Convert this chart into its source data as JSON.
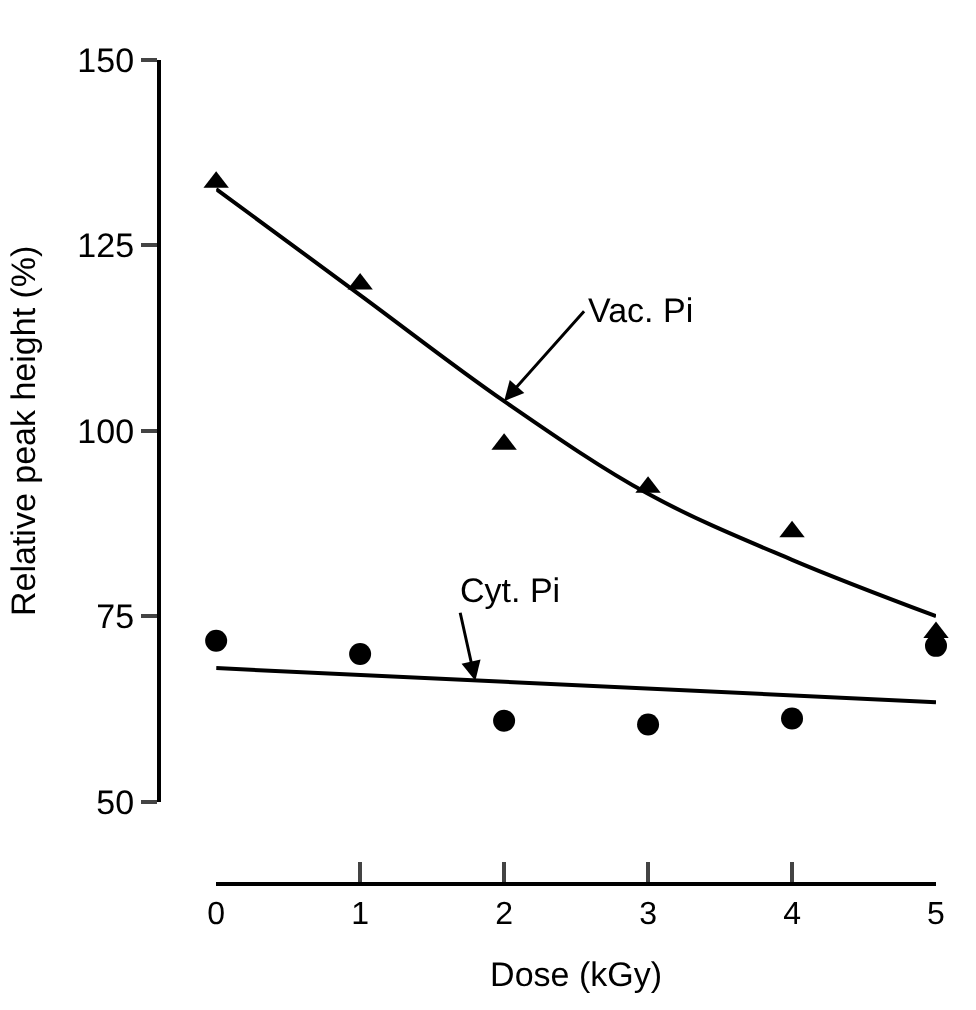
{
  "chart_data": {
    "type": "scatter",
    "xlabel": "Dose (kGy)",
    "ylabel": "Relative peak height (%)",
    "x": [
      0,
      1,
      2,
      3,
      4,
      5
    ],
    "xlim": [
      0,
      5
    ],
    "xticks": [
      0,
      1,
      2,
      3,
      4,
      5
    ],
    "ylim": [
      50,
      150
    ],
    "yticks": [
      50,
      75,
      100,
      125,
      150
    ],
    "series": [
      {
        "marker": "triangle",
        "color": "#000000",
        "values": [
          133.5,
          119.8,
          98.2,
          92.4,
          86.4,
          72.8
        ]
      },
      {
        "marker": "circle",
        "color": "#000000",
        "values": [
          71.7,
          69.9,
          60.9,
          60.4,
          61.2,
          71
        ]
      },
      {
        "type": "line",
        "marker": "none",
        "line_style": "solid",
        "color": "#000000",
        "values": [
          132.6,
          118.3,
          104,
          91.5,
          82.6,
          75
        ]
      },
      {
        "type": "line",
        "marker": "none",
        "line_style": "solid",
        "color": "#000000",
        "x": [
          0,
          5
        ],
        "values": [
          68,
          63.4
        ]
      }
    ],
    "annotations": [
      {
        "text": "Vac. Pi",
        "x": 2.0,
        "y": 104
      },
      {
        "text": "Cyt. Pi",
        "x": 1.8,
        "y": 66.3
      }
    ]
  }
}
